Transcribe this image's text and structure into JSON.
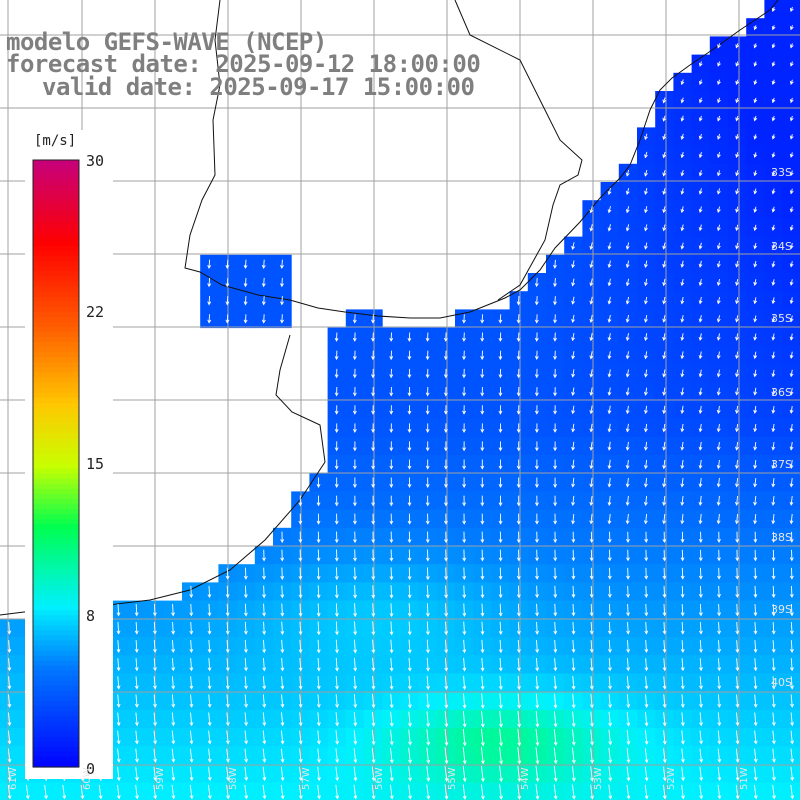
{
  "title": {
    "line1": "modelo GEFS-WAVE (NCEP)",
    "line2": "forecast date: 2025-09-12 18:00:00",
    "line3": "valid date: 2025-09-17 15:00:00"
  },
  "colorbar": {
    "units": "[m/s]",
    "ticks": [
      "30",
      "22",
      "15",
      "8",
      "0"
    ]
  },
  "lat_labels": [
    "33S",
    "34S",
    "35S",
    "36S",
    "37S",
    "38S",
    "39S",
    "40S"
  ],
  "lon_labels": [
    "61W",
    "60W",
    "59W",
    "58W",
    "57W",
    "56W",
    "55W",
    "54W",
    "53W",
    "52W",
    "51W"
  ],
  "colors": {
    "land": "#ffffff",
    "grid": "#9a9a9a",
    "coast": "#111111",
    "arrow": "#ffffff",
    "title": "#7f7f7f"
  }
}
